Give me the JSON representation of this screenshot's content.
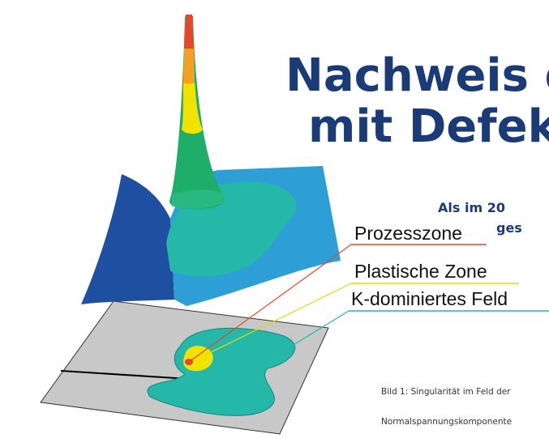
{
  "heading": {
    "line1": "Nachweis d",
    "line2": "mit Defekt"
  },
  "intro": {
    "line1": "Als im 20",
    "line2": "ges"
  },
  "figure": {
    "labels": [
      "Prozesszone",
      "Plastische Zone",
      "K-dominiertes Feld"
    ],
    "caption": {
      "line1": "Bild 1: Singularität im Feld der",
      "line2": "Normalspannungskomponente"
    }
  }
}
